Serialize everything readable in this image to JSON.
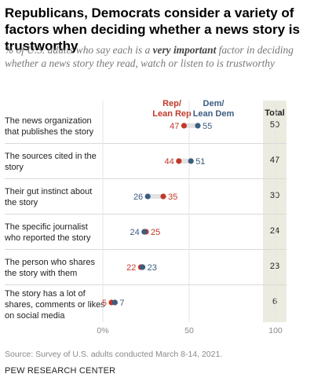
{
  "header": {
    "title": "Republicans, Democrats consider a variety of factors when deciding whether a news story is trustworthy",
    "subtitle_before": "% of U.S. adults who say each is a ",
    "subtitle_emphasis": "very important",
    "subtitle_after": " factor in deciding whether a news story they read, watch or listen to is trustworthy"
  },
  "legend": {
    "rep_line1": "Rep/",
    "rep_line2": "Lean Rep",
    "dem_line1": "Dem/",
    "dem_line2": "Lean Dem",
    "total": "Total"
  },
  "colors": {
    "rep": "#c0392b",
    "dem": "#3b5d80",
    "bar": "#e2e2e2",
    "total_bg": "#ecebe0"
  },
  "chart_data": {
    "type": "dot",
    "categories": [
      "The news organization that publishes the story",
      "The sources cited in the story",
      "Their gut instinct about the story",
      "The specific journalist who reported the story",
      "The person who shares the story with them",
      "The story has a lot of shares, comments or likes on social media"
    ],
    "series": [
      {
        "name": "Rep/Lean Rep",
        "values": [
          47,
          44,
          35,
          25,
          22,
          5
        ]
      },
      {
        "name": "Dem/Lean Dem",
        "values": [
          55,
          51,
          26,
          24,
          23,
          7
        ]
      }
    ],
    "totals": [
      50,
      47,
      30,
      24,
      23,
      6
    ],
    "xlim": [
      0,
      100
    ],
    "xticks": [
      0,
      50,
      100
    ],
    "xtick_labels": [
      "0%",
      "50",
      "100"
    ]
  },
  "footer": {
    "source": "Source: Survey of U.S. adults conducted March 8-14, 2021.",
    "credit": "PEW RESEARCH CENTER"
  }
}
